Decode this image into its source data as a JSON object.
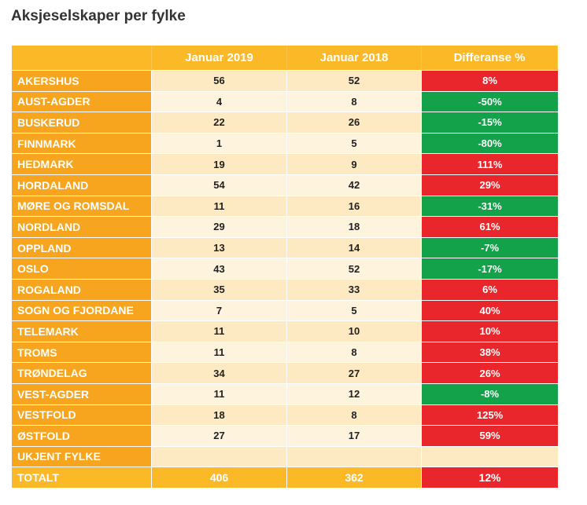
{
  "title": "Aksjeselskaper per fylke",
  "header": {
    "col1": "",
    "col2": "Januar 2019",
    "col3": "Januar 2018",
    "col4": "Differanse %"
  },
  "colors": {
    "header": "#fbb927",
    "name_col": "#f7a51e",
    "positive": "#e9262b",
    "negative": "#13a14a"
  },
  "rows": [
    {
      "name": "AKERSHUS",
      "jan2019": "56",
      "jan2018": "52",
      "diff": "8%",
      "status": "red"
    },
    {
      "name": "AUST-AGDER",
      "jan2019": "4",
      "jan2018": "8",
      "diff": "-50%",
      "status": "green"
    },
    {
      "name": "BUSKERUD",
      "jan2019": "22",
      "jan2018": "26",
      "diff": "-15%",
      "status": "green"
    },
    {
      "name": "FINNMARK",
      "jan2019": "1",
      "jan2018": "5",
      "diff": "-80%",
      "status": "green"
    },
    {
      "name": "HEDMARK",
      "jan2019": "19",
      "jan2018": "9",
      "diff": "111%",
      "status": "red"
    },
    {
      "name": "HORDALAND",
      "jan2019": "54",
      "jan2018": "42",
      "diff": "29%",
      "status": "red"
    },
    {
      "name": "MØRE OG ROMSDAL",
      "jan2019": "11",
      "jan2018": "16",
      "diff": "-31%",
      "status": "green"
    },
    {
      "name": "NORDLAND",
      "jan2019": "29",
      "jan2018": "18",
      "diff": "61%",
      "status": "red"
    },
    {
      "name": "OPPLAND",
      "jan2019": "13",
      "jan2018": "14",
      "diff": "-7%",
      "status": "green"
    },
    {
      "name": "OSLO",
      "jan2019": "43",
      "jan2018": "52",
      "diff": "-17%",
      "status": "green"
    },
    {
      "name": "ROGALAND",
      "jan2019": "35",
      "jan2018": "33",
      "diff": "6%",
      "status": "red"
    },
    {
      "name": "SOGN OG FJORDANE",
      "jan2019": "7",
      "jan2018": "5",
      "diff": "40%",
      "status": "red"
    },
    {
      "name": "TELEMARK",
      "jan2019": "11",
      "jan2018": "10",
      "diff": "10%",
      "status": "red"
    },
    {
      "name": "TROMS",
      "jan2019": "11",
      "jan2018": "8",
      "diff": "38%",
      "status": "red"
    },
    {
      "name": "TRØNDELAG",
      "jan2019": "34",
      "jan2018": "27",
      "diff": "26%",
      "status": "red"
    },
    {
      "name": "VEST-AGDER",
      "jan2019": "11",
      "jan2018": "12",
      "diff": "-8%",
      "status": "green"
    },
    {
      "name": "VESTFOLD",
      "jan2019": "18",
      "jan2018": "8",
      "diff": "125%",
      "status": "red"
    },
    {
      "name": "ØSTFOLD",
      "jan2019": "27",
      "jan2018": "17",
      "diff": "59%",
      "status": "red"
    },
    {
      "name": "UKJENT FYLKE",
      "jan2019": "",
      "jan2018": "",
      "diff": "",
      "status": "empty"
    }
  ],
  "total": {
    "name": "TOTALT",
    "jan2019": "406",
    "jan2018": "362",
    "diff": "12%"
  }
}
